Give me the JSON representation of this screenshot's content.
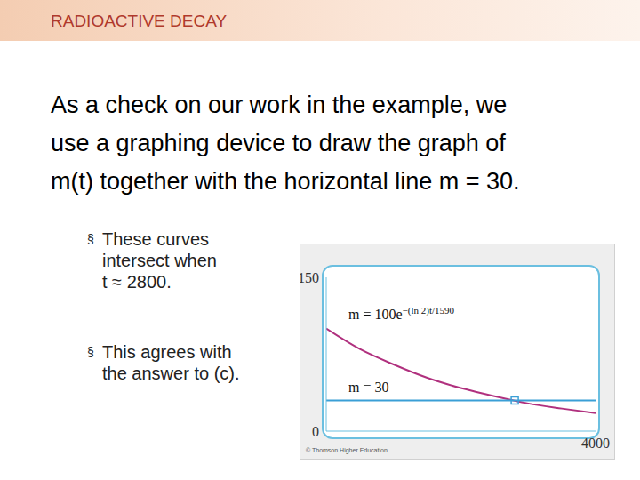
{
  "header": {
    "title": "RADIOACTIVE DECAY"
  },
  "body": {
    "lines": [
      "As a check on our work in the example, we",
      "use a graphing device to draw the graph of",
      "m(t) together with the horizontal line m = 30."
    ]
  },
  "bullet_symbol": "§",
  "bullets": [
    {
      "lines": [
        "These curves",
        "intersect when",
        "t ≈ 2800."
      ]
    },
    {
      "lines": [
        "This agrees with",
        "the answer to (c)."
      ]
    }
  ],
  "chart_data": {
    "type": "line",
    "xlim": [
      0,
      4000
    ],
    "ylim": [
      0,
      150
    ],
    "xticks": [
      4000
    ],
    "yticks": [
      0,
      150
    ],
    "series": [
      {
        "color": "#b0307e",
        "marker": "none",
        "x": [
          0,
          500,
          1000,
          1500,
          2000,
          2500,
          3000,
          3500,
          4000
        ],
        "values": [
          100,
          80,
          65,
          52,
          42,
          34,
          27,
          22,
          17.5
        ]
      },
      {
        "color": "#3a9fd6",
        "marker": "none",
        "x": [
          0,
          4000
        ],
        "values": [
          30,
          30
        ]
      }
    ],
    "annotations": [
      {
        "text": "m = 100e",
        "superscript": "−(ln 2)t/1590"
      },
      {
        "text": "m = 30"
      }
    ],
    "intersection": {
      "x": 2800,
      "y": 30,
      "marker": "square",
      "color": "#3a9fd6"
    },
    "copyright": "© Thomson Higher Education"
  }
}
